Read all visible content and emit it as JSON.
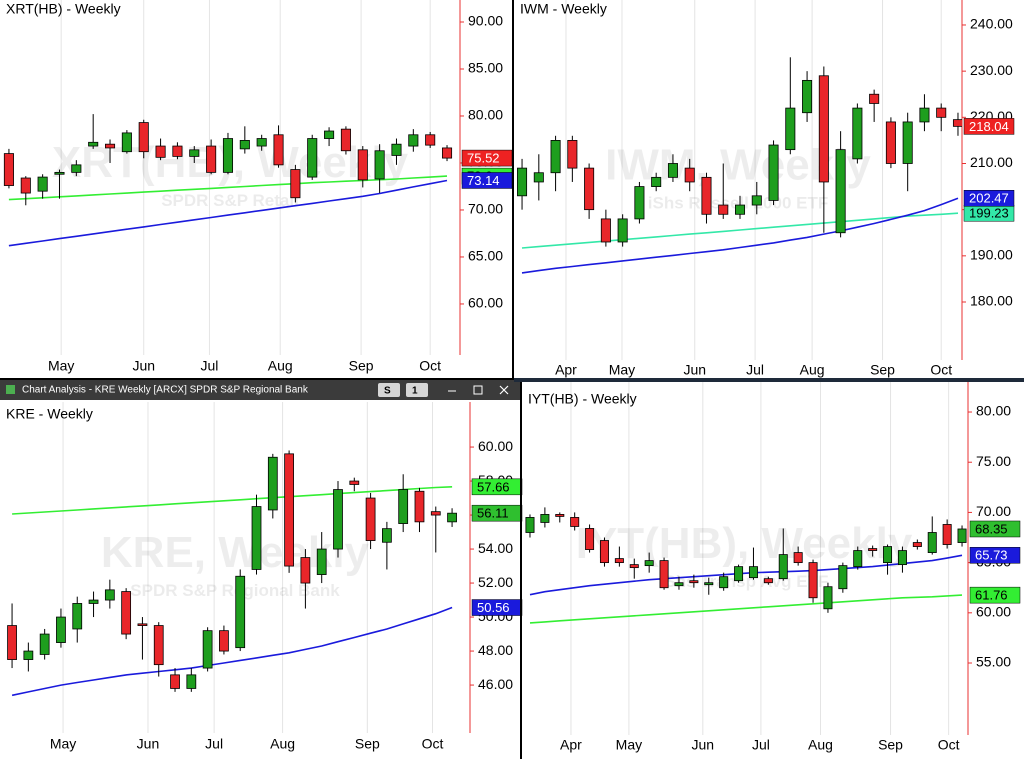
{
  "chart_data": [
    {
      "type": "candlestick",
      "title": "XRT(HB) - Weekly",
      "watermark": "XRT(HB), Weekly",
      "watermark_subtitle": "SPDR S&P Retail",
      "open": [
        76.0,
        73.4,
        72.0,
        73.8,
        74.0,
        76.8,
        77.0,
        76.2,
        79.3,
        76.8,
        76.8,
        75.7,
        76.8,
        74.0,
        76.5,
        76.8,
        78.0,
        74.3,
        73.5,
        77.6,
        78.6,
        76.4,
        73.3,
        75.8,
        76.8,
        78.0,
        76.6
      ],
      "high": [
        76.5,
        73.6,
        73.8,
        74.3,
        75.3,
        80.2,
        77.5,
        78.5,
        79.6,
        77.6,
        77.2,
        76.8,
        77.5,
        78.2,
        78.9,
        78.0,
        79.0,
        74.8,
        78.0,
        78.8,
        78.9,
        76.8,
        77.0,
        77.6,
        78.6,
        78.3,
        76.9
      ],
      "low": [
        72.3,
        70.5,
        71.2,
        71.2,
        73.6,
        76.5,
        75.0,
        76.0,
        75.5,
        75.3,
        75.4,
        75.0,
        73.8,
        73.8,
        76.0,
        76.3,
        74.5,
        70.8,
        73.2,
        76.8,
        75.9,
        72.4,
        71.8,
        74.8,
        76.2,
        76.6,
        75.2
      ],
      "close": [
        72.6,
        71.8,
        73.5,
        74.0,
        74.8,
        77.2,
        76.6,
        78.2,
        76.2,
        75.6,
        75.7,
        76.4,
        74.0,
        77.6,
        77.4,
        77.6,
        74.8,
        71.3,
        77.6,
        78.4,
        76.3,
        73.2,
        76.3,
        77.0,
        78.0,
        76.9,
        75.52
      ],
      "series": [
        {
          "color": "#33ee33",
          "values": [
            71.1,
            71.2,
            71.3,
            71.4,
            71.5,
            71.6,
            71.7,
            71.8,
            71.9,
            72.0,
            72.1,
            72.2,
            72.3,
            72.4,
            72.5,
            72.6,
            72.7,
            72.8,
            72.9,
            72.98,
            73.06,
            73.14,
            73.22,
            73.3,
            73.4,
            73.5,
            73.6
          ]
        },
        {
          "color": "#1a1adc",
          "values": [
            66.2,
            66.45,
            66.7,
            66.95,
            67.2,
            67.45,
            67.7,
            67.95,
            68.2,
            68.45,
            68.7,
            68.95,
            69.2,
            69.45,
            69.7,
            69.95,
            70.2,
            70.45,
            70.7,
            70.95,
            71.2,
            71.45,
            71.75,
            72.1,
            72.45,
            72.8,
            73.14
          ]
        }
      ],
      "up_color": "#1e9e1e",
      "down_color": "#e8262a",
      "xlim": [
        -0.53,
        26.77
      ],
      "xticks": [
        {
          "value": 3.1,
          "label": "May"
        },
        {
          "value": 8.0,
          "label": "Jun"
        },
        {
          "value": 11.9,
          "label": "Jul"
        },
        {
          "value": 16.1,
          "label": "Aug"
        },
        {
          "value": 20.9,
          "label": "Sep"
        },
        {
          "value": 25.0,
          "label": "Oct"
        }
      ],
      "ylim": [
        54.57,
        92.34
      ],
      "yticks": [
        {
          "value": 60,
          "label": "60.00"
        },
        {
          "value": 65,
          "label": "65.00"
        },
        {
          "value": 70,
          "label": "70.00"
        },
        {
          "value": 75,
          "label": "75.00"
        },
        {
          "value": 80,
          "label": "80.00"
        },
        {
          "value": 85,
          "label": "85.00"
        },
        {
          "value": 90,
          "label": "90.00"
        }
      ],
      "grid": "x"
    },
    {
      "type": "candlestick",
      "title": "IWM - Weekly",
      "watermark": "IWM, Weekly",
      "watermark_subtitle": "iShs Russell 2000 ETF",
      "open": [
        203,
        206,
        208,
        215,
        209,
        198,
        193,
        198,
        205,
        207,
        209,
        207,
        201,
        199,
        201,
        202,
        213,
        221,
        229,
        195,
        211,
        225,
        219,
        210,
        219,
        222,
        219.5
      ],
      "high": [
        211,
        212,
        216,
        216,
        210,
        200,
        199,
        206,
        208,
        212,
        211,
        208,
        210,
        203,
        206,
        215,
        233,
        230,
        231,
        217,
        223,
        226,
        220,
        221,
        225,
        223,
        221
      ],
      "low": [
        200,
        202,
        204,
        206,
        198,
        192,
        192,
        197,
        204,
        206,
        204,
        197,
        198,
        198,
        199,
        201,
        212,
        219,
        195,
        194,
        210,
        219,
        209,
        204,
        217,
        217,
        216
      ],
      "close": [
        209,
        208,
        215,
        209,
        200,
        193,
        198,
        205,
        207,
        210,
        206,
        199,
        199,
        201,
        203,
        214,
        222,
        228,
        206,
        213,
        222,
        223,
        210,
        219,
        222,
        220,
        218.04
      ],
      "series": [
        {
          "color": "#33e8a8",
          "values": [
            191.7,
            192.0,
            192.3,
            192.6,
            192.9,
            193.2,
            193.5,
            193.8,
            194.1,
            194.4,
            194.7,
            195.0,
            195.3,
            195.6,
            195.9,
            196.2,
            196.5,
            196.8,
            197.1,
            197.4,
            197.7,
            198.0,
            198.3,
            198.6,
            198.8,
            199.0,
            199.23
          ]
        },
        {
          "color": "#1a1adc",
          "values": [
            186.3,
            186.8,
            187.3,
            187.7,
            188.1,
            188.5,
            188.9,
            189.3,
            189.7,
            190.1,
            190.5,
            190.9,
            191.3,
            191.8,
            192.3,
            192.8,
            193.4,
            194.0,
            194.7,
            195.4,
            196.2,
            197.0,
            197.9,
            198.8,
            199.8,
            201.1,
            202.47
          ]
        }
      ],
      "up_color": "#1e9e1e",
      "down_color": "#e8262a",
      "xlim": [
        -0.48,
        26.24
      ],
      "xticks": [
        {
          "value": 2.62,
          "label": "Apr"
        },
        {
          "value": 5.96,
          "label": "May"
        },
        {
          "value": 10.3,
          "label": "Jun"
        },
        {
          "value": 13.9,
          "label": "Jul"
        },
        {
          "value": 17.3,
          "label": "Aug"
        },
        {
          "value": 21.5,
          "label": "Sep"
        },
        {
          "value": 25.0,
          "label": "Oct"
        }
      ],
      "ylim": [
        167.44,
        245.41
      ],
      "yticks": [
        {
          "value": 180,
          "label": "180.00"
        },
        {
          "value": 190,
          "label": "190.00"
        },
        {
          "value": 200,
          "label": "200.00"
        },
        {
          "value": 210,
          "label": "210.00"
        },
        {
          "value": 220,
          "label": "220.00"
        },
        {
          "value": 230,
          "label": "230.00"
        },
        {
          "value": 240,
          "label": "240.00"
        }
      ],
      "grid": "x"
    },
    {
      "type": "candlestick",
      "title": "KRE - Weekly",
      "window_title": "Chart Analysis - KRE Weekly [ARCX] SPDR S&P Regional Bank",
      "toolbar_buttons": [
        "S",
        "1"
      ],
      "watermark": "KRE, Weekly",
      "watermark_subtitle": "SPDR S&P Regional Bank",
      "open": [
        49.5,
        47.5,
        47.8,
        48.5,
        49.3,
        50.8,
        51.0,
        51.5,
        49.6,
        49.5,
        46.6,
        45.8,
        47.0,
        49.2,
        48.2,
        52.8,
        56.3,
        59.6,
        53.5,
        52.5,
        54.0,
        58.0,
        57.0,
        54.4,
        55.5,
        57.4,
        56.2,
        55.6
      ],
      "high": [
        50.8,
        48.5,
        49.3,
        50.5,
        51.2,
        51.5,
        52.2,
        51.7,
        50.0,
        49.7,
        47.0,
        47.0,
        49.4,
        49.5,
        52.8,
        57.2,
        59.6,
        59.8,
        54.0,
        55.0,
        58.0,
        58.2,
        57.3,
        55.6,
        58.4,
        57.6,
        56.5,
        56.4
      ],
      "low": [
        47.0,
        46.8,
        47.5,
        48.2,
        48.5,
        50.0,
        50.5,
        48.7,
        47.5,
        46.5,
        45.6,
        45.6,
        46.8,
        47.8,
        48.0,
        52.5,
        55.8,
        52.6,
        50.5,
        52.0,
        53.5,
        57.4,
        54.0,
        52.8,
        55.0,
        55.0,
        53.8,
        55.3
      ],
      "close": [
        47.5,
        48.0,
        49.0,
        50.0,
        50.8,
        51.0,
        51.6,
        49.0,
        49.5,
        47.2,
        45.8,
        46.6,
        49.2,
        48.0,
        52.4,
        56.5,
        59.4,
        53.0,
        52.0,
        54.0,
        57.5,
        57.8,
        54.5,
        55.2,
        57.5,
        55.6,
        56.0,
        56.11
      ],
      "series": [
        {
          "color": "#33ee33",
          "values": [
            56.06,
            56.12,
            56.18,
            56.24,
            56.3,
            56.36,
            56.42,
            56.48,
            56.54,
            56.6,
            56.66,
            56.72,
            56.78,
            56.84,
            56.9,
            56.96,
            57.02,
            57.08,
            57.14,
            57.2,
            57.26,
            57.32,
            57.38,
            57.44,
            57.5,
            57.56,
            57.62,
            57.66
          ]
        },
        {
          "color": "#1a1adc",
          "values": [
            45.4,
            45.6,
            45.8,
            46.0,
            46.15,
            46.3,
            46.45,
            46.6,
            46.7,
            46.8,
            46.9,
            47.0,
            47.15,
            47.3,
            47.45,
            47.6,
            47.75,
            47.9,
            48.1,
            48.3,
            48.55,
            48.8,
            49.05,
            49.3,
            49.6,
            49.9,
            50.2,
            50.56
          ]
        }
      ],
      "up_color": "#1e9e1e",
      "down_color": "#e8262a",
      "xlim": [
        -0.74,
        28.1
      ],
      "xticks": [
        {
          "value": 3.13,
          "label": "May"
        },
        {
          "value": 8.34,
          "label": "Jun"
        },
        {
          "value": 12.4,
          "label": "Jul"
        },
        {
          "value": 16.6,
          "label": "Aug"
        },
        {
          "value": 21.8,
          "label": "Sep"
        },
        {
          "value": 25.8,
          "label": "Oct"
        }
      ],
      "ylim": [
        43.18,
        62.65
      ],
      "yticks": [
        {
          "value": 46,
          "label": "46.00"
        },
        {
          "value": 48,
          "label": "48.00"
        },
        {
          "value": 50,
          "label": "50.00"
        },
        {
          "value": 52,
          "label": "52.00"
        },
        {
          "value": 54,
          "label": "54.00"
        },
        {
          "value": 56,
          "label": "56.00"
        },
        {
          "value": 58,
          "label": "58.00"
        },
        {
          "value": 60,
          "label": "60.00"
        }
      ],
      "grid": "x"
    },
    {
      "type": "candlestick",
      "title": "IYT(HB) - Weekly",
      "watermark": "IYT(HB), Weekly",
      "watermark_subtitle": "iShs Transp Avg ETF",
      "open": [
        68.0,
        69.0,
        69.8,
        69.5,
        68.4,
        67.2,
        65.4,
        64.8,
        64.7,
        65.2,
        62.7,
        63.2,
        62.8,
        62.5,
        63.2,
        63.5,
        63.4,
        63.4,
        66.0,
        65.0,
        60.4,
        62.4,
        64.6,
        66.4,
        65.0,
        64.8,
        67.0,
        66.0,
        68.8,
        67.0
      ],
      "high": [
        69.8,
        70.5,
        70.0,
        70.0,
        68.8,
        67.5,
        66.6,
        65.4,
        66.0,
        65.5,
        63.6,
        63.8,
        63.5,
        64.0,
        64.8,
        66.5,
        63.6,
        68.4,
        66.6,
        65.3,
        63.0,
        65.0,
        66.6,
        66.7,
        66.8,
        66.6,
        67.3,
        69.6,
        69.3,
        68.7
      ],
      "low": [
        67.5,
        68.5,
        69.0,
        68.2,
        66.0,
        64.6,
        64.6,
        63.4,
        64.0,
        62.3,
        62.3,
        62.5,
        61.8,
        62.2,
        63.0,
        63.3,
        62.8,
        63.2,
        64.7,
        61.0,
        60.0,
        62.0,
        64.3,
        65.6,
        63.8,
        64.0,
        66.3,
        65.8,
        66.4,
        66.6
      ],
      "close": [
        69.5,
        69.8,
        69.6,
        68.6,
        66.3,
        65.0,
        65.0,
        64.5,
        65.2,
        62.5,
        63.0,
        63.0,
        63.0,
        63.6,
        64.6,
        64.6,
        63.0,
        65.8,
        65.0,
        61.5,
        62.6,
        64.7,
        66.2,
        66.2,
        66.6,
        66.2,
        66.6,
        68.0,
        66.8,
        68.35
      ],
      "series": [
        {
          "color": "#33ee33",
          "values": [
            59.0,
            59.1,
            59.2,
            59.3,
            59.4,
            59.5,
            59.6,
            59.7,
            59.8,
            59.9,
            60.0,
            60.1,
            60.2,
            60.3,
            60.4,
            60.5,
            60.6,
            60.7,
            60.8,
            60.9,
            61.0,
            61.1,
            61.2,
            61.3,
            61.4,
            61.5,
            61.55,
            61.6,
            61.68,
            61.76
          ]
        },
        {
          "color": "#1a1adc",
          "values": [
            61.8,
            62.1,
            62.3,
            62.5,
            62.7,
            62.85,
            63.0,
            63.15,
            63.3,
            63.4,
            63.5,
            63.6,
            63.7,
            63.8,
            63.9,
            64.0,
            64.05,
            64.1,
            64.15,
            64.2,
            64.3,
            64.4,
            64.5,
            64.6,
            64.75,
            64.9,
            65.05,
            65.2,
            65.45,
            65.73
          ]
        }
      ],
      "up_color": "#1e9e1e",
      "down_color": "#e8262a",
      "xlim": [
        -0.67,
        29.4
      ],
      "xticks": [
        {
          "value": 2.75,
          "label": "Apr"
        },
        {
          "value": 6.64,
          "label": "May"
        },
        {
          "value": 11.6,
          "label": "Jun"
        },
        {
          "value": 15.5,
          "label": "Jul"
        },
        {
          "value": 19.5,
          "label": "Aug"
        },
        {
          "value": 24.2,
          "label": "Sep"
        },
        {
          "value": 28.1,
          "label": "Oct"
        }
      ],
      "ylim": [
        47.83,
        82.99
      ],
      "yticks": [
        {
          "value": 55,
          "label": "55.00"
        },
        {
          "value": 60,
          "label": "60.00"
        },
        {
          "value": 65,
          "label": "65.00"
        },
        {
          "value": 70,
          "label": "70.00"
        },
        {
          "value": 75,
          "label": "75.00"
        },
        {
          "value": 80,
          "label": "80.00"
        }
      ],
      "grid": "x"
    }
  ]
}
